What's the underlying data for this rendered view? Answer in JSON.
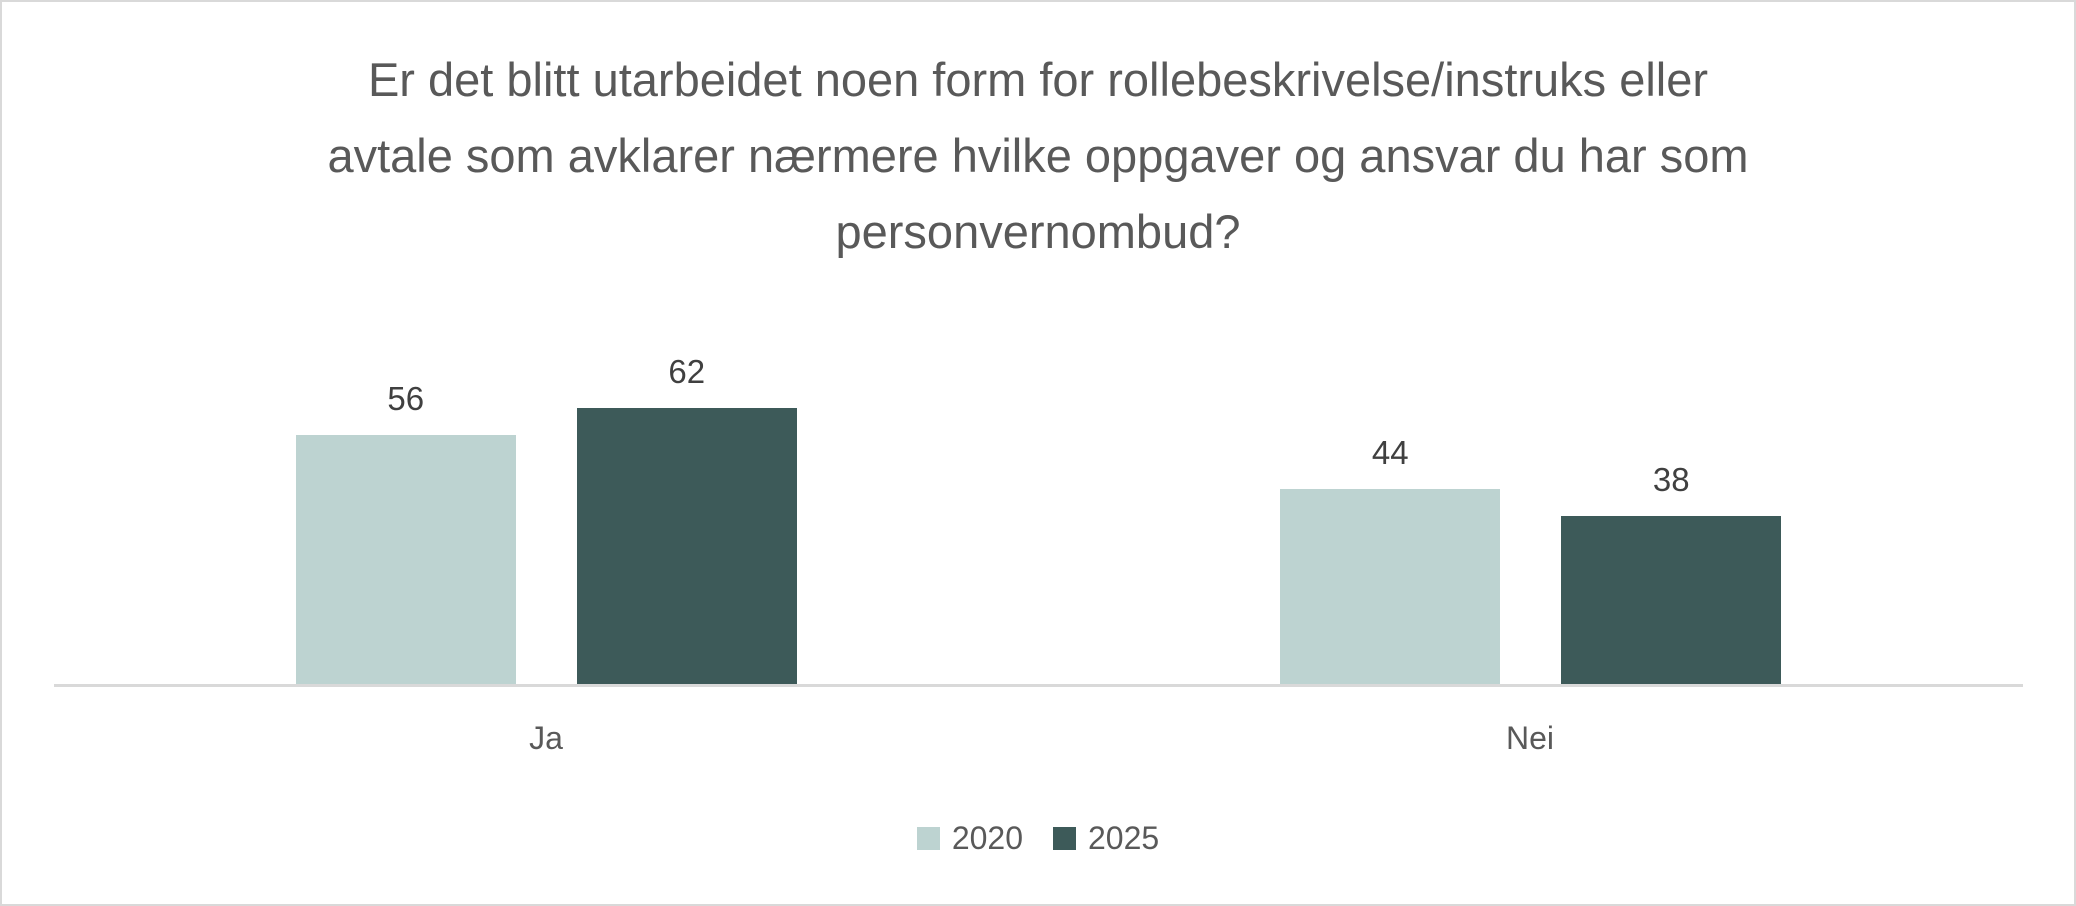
{
  "chart_data": {
    "type": "bar",
    "title": "Er det blitt utarbeidet noen form for rollebeskrivelse/instruks eller avtale som avklarer nærmere hvilke oppgaver og ansvar du har som personvernombud?",
    "title_lines": [
      "Er det blitt utarbeidet noen form for rollebeskrivelse/instruks eller",
      "avtale som avklarer nærmere hvilke oppgaver og ansvar du har som",
      "personvernombud?"
    ],
    "categories": [
      "Ja",
      "Nei"
    ],
    "series": [
      {
        "name": "2020",
        "values": [
          56,
          44
        ],
        "color": "#bdd3d1"
      },
      {
        "name": "2025",
        "values": [
          62,
          38
        ],
        "color": "#3d5a59"
      }
    ],
    "data_labels": [
      [
        "56",
        "44"
      ],
      [
        "62",
        "38"
      ]
    ],
    "xlabel": "",
    "ylabel": "",
    "ylim": [
      0,
      86
    ],
    "grid": false,
    "y_axis_visible": false,
    "legend_position": "bottom"
  },
  "legend": {
    "items": [
      {
        "label": "2020",
        "color": "#bdd3d1"
      },
      {
        "label": "2025",
        "color": "#3d5a59"
      }
    ]
  }
}
